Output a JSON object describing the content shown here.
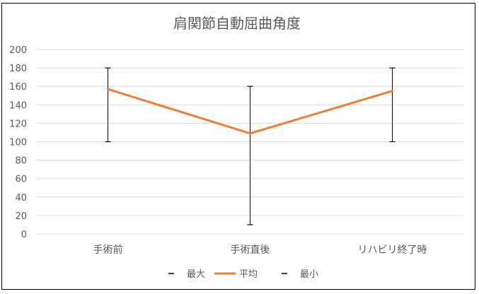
{
  "chart_data": {
    "type": "line",
    "title": "肩関節自動屈曲角度",
    "xlabel": "",
    "ylabel": "",
    "categories": [
      "手術前",
      "手術直後",
      "リハビリ終了時"
    ],
    "ylim": [
      0,
      200
    ],
    "yticks": [
      0,
      20,
      40,
      60,
      80,
      100,
      120,
      140,
      160,
      180,
      200
    ],
    "grid": true,
    "legend_position": "bottom",
    "series": [
      {
        "name": "最大",
        "values": [
          180,
          160,
          180
        ],
        "color": "#000000",
        "style": "marker-dash"
      },
      {
        "name": "平均",
        "values": [
          157,
          109,
          155
        ],
        "color": "#ED7D31",
        "style": "line"
      },
      {
        "name": "最小",
        "values": [
          100,
          10,
          100
        ],
        "color": "#000000",
        "style": "marker-dash"
      }
    ]
  }
}
